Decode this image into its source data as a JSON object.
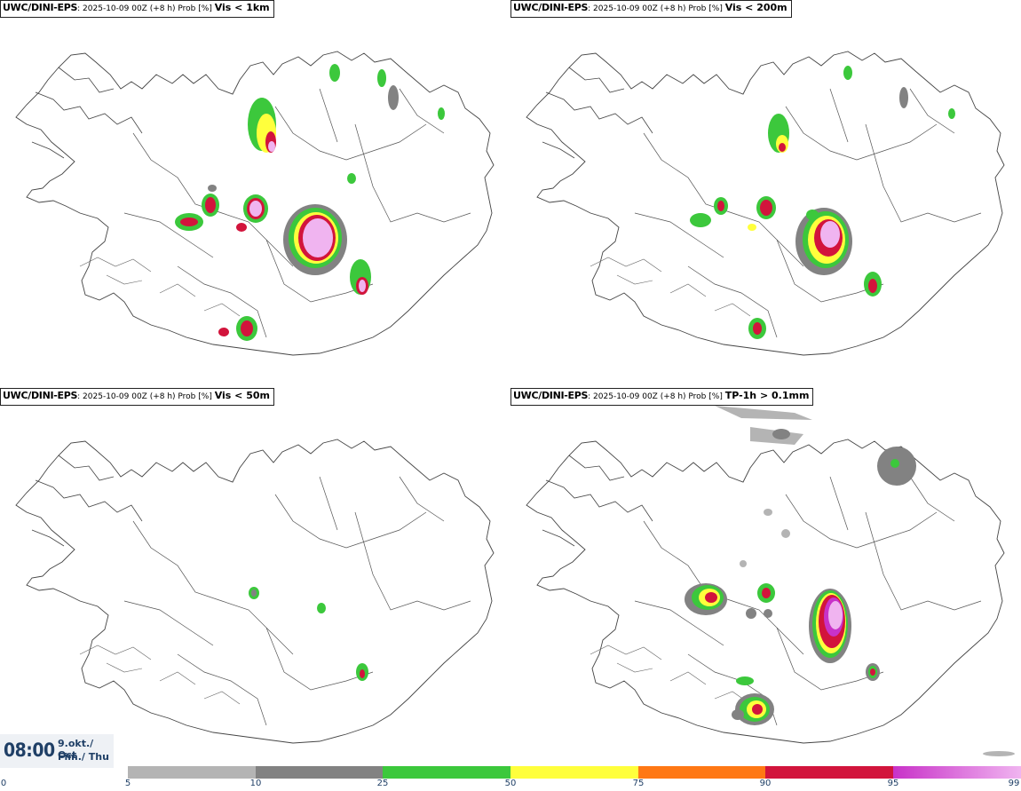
{
  "panels": [
    {
      "model": "UWC/DINI-EPS",
      "meta": ": 2025-10-09 00Z (+8 h) Prob [%] ",
      "variable": "Vis < 1km"
    },
    {
      "model": "UWC/DINI-EPS",
      "meta": ": 2025-10-09 00Z (+8 h) Prob [%] ",
      "variable": "Vis < 200m"
    },
    {
      "model": "UWC/DINI-EPS",
      "meta": ": 2025-10-09 00Z (+8 h) Prob [%] ",
      "variable": "Vis < 50m"
    },
    {
      "model": "UWC/DINI-EPS",
      "meta": ": 2025-10-09 00Z (+8 h) Prob [%] ",
      "variable": "TP-1h > 0.1mm"
    }
  ],
  "valid_time": {
    "time": "08:00",
    "date_line1": "9.okt./ Oct",
    "date_line2": "Fim./ Thu"
  },
  "legend": {
    "ticks": [
      "0",
      "5",
      "10",
      "25",
      "50",
      "75",
      "90",
      "95",
      "99"
    ],
    "colors": [
      "#b4b4b4",
      "#828282",
      "#3cc83c",
      "#ffff3c",
      "#ff7814",
      "#d2143c",
      "#c832c8",
      "#f0b4f0"
    ]
  },
  "colors": {
    "frame": "#222222",
    "coast": "#444444",
    "label_text": "#1f3f66"
  }
}
